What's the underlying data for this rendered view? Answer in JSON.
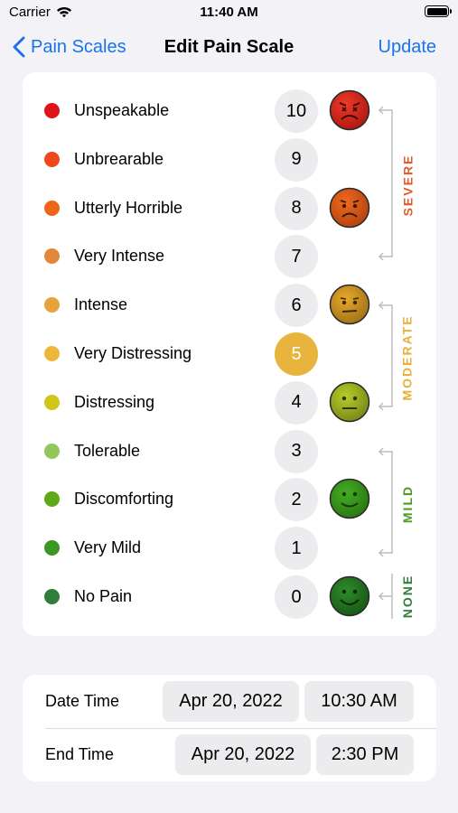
{
  "status_bar": {
    "carrier": "Carrier",
    "time": "11:40 AM"
  },
  "nav": {
    "back_label": "Pain Scales",
    "title": "Edit Pain Scale",
    "update_label": "Update"
  },
  "scale": {
    "selected_value": 5,
    "levels": [
      {
        "label": "Unspeakable",
        "value": "10",
        "color": "#e0131a",
        "face": "crying"
      },
      {
        "label": "Unbrearable",
        "value": "9",
        "color": "#f0481a"
      },
      {
        "label": "Utterly Horrible",
        "value": "8",
        "color": "#ef6518",
        "face": "sad"
      },
      {
        "label": "Very Intense",
        "value": "7",
        "color": "#e2883a"
      },
      {
        "label": "Intense",
        "value": "6",
        "color": "#e6a23b",
        "face": "uneasy"
      },
      {
        "label": "Very Distressing",
        "value": "5",
        "color": "#ecb73b"
      },
      {
        "label": "Distressing",
        "value": "4",
        "color": "#cfc617",
        "face": "neutral"
      },
      {
        "label": "Tolerable",
        "value": "3",
        "color": "#92c75a"
      },
      {
        "label": "Discomforting",
        "value": "2",
        "color": "#5daa17",
        "face": "smile"
      },
      {
        "label": "Very Mild",
        "value": "1",
        "color": "#3b9622"
      },
      {
        "label": "No Pain",
        "value": "0",
        "color": "#2f7e3b",
        "face": "happy"
      }
    ],
    "groups": [
      {
        "label": "SEVERE",
        "color": "#e35a2c"
      },
      {
        "label": "MODERATE",
        "color": "#e6b23b"
      },
      {
        "label": "MILD",
        "color": "#4a9d1e"
      },
      {
        "label": "NONE",
        "color": "#2f7e3b"
      }
    ]
  },
  "times": {
    "start_label": "Date Time",
    "start_date": "Apr 20, 2022",
    "start_time": "10:30 AM",
    "end_label": "End Time",
    "end_date": "Apr 20, 2022",
    "end_time": "2:30 PM"
  }
}
